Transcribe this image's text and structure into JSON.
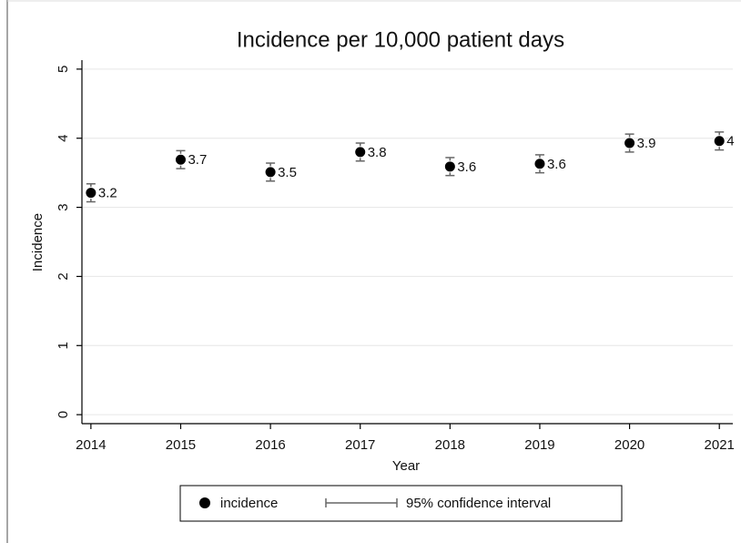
{
  "chart_data": {
    "type": "scatter",
    "title": "Incidence per 10,000 patient days",
    "xlabel": "Year",
    "ylabel": "Incidence",
    "x": [
      2014,
      2015,
      2016,
      2017,
      2018,
      2019,
      2020,
      2021
    ],
    "series": [
      {
        "name": "incidence",
        "color": "#000000",
        "values": [
          3.21,
          3.69,
          3.51,
          3.8,
          3.59,
          3.63,
          3.93,
          3.96
        ],
        "value_labels": [
          "3.2",
          "3.7",
          "3.5",
          "3.8",
          "3.6",
          "3.6",
          "3.9",
          "4"
        ],
        "errors": [
          0.13,
          0.13,
          0.13,
          0.13,
          0.13,
          0.13,
          0.13,
          0.13
        ],
        "error_name": "95% confidence interval",
        "error_color": "#666666"
      }
    ],
    "xlim": [
      2013.9,
      2021.15
    ],
    "ylim": [
      -0.13,
      5.13
    ],
    "xticks": [
      2014,
      2015,
      2016,
      2017,
      2018,
      2019,
      2020,
      2021
    ],
    "yticks": [
      0,
      1,
      2,
      3,
      4,
      5
    ],
    "grid": true
  }
}
